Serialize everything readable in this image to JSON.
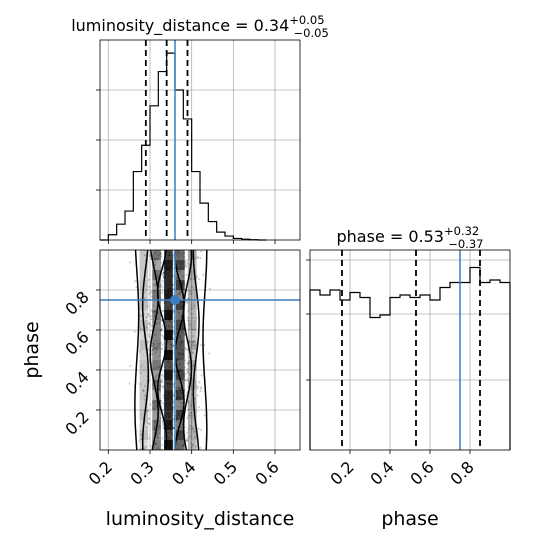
{
  "chart_data": {
    "type": "corner",
    "parameters": [
      "luminosity_distance",
      "phase"
    ],
    "ranges": {
      "luminosity_distance": [
        0.18,
        0.66
      ],
      "phase": [
        0.0,
        1.0
      ]
    },
    "ticks": {
      "luminosity_distance": [
        0.2,
        0.3,
        0.4,
        0.5,
        0.6
      ],
      "phase": [
        0.2,
        0.4,
        0.6,
        0.8
      ]
    },
    "tick_labels": {
      "luminosity_distance": [
        "0.2",
        "0.3",
        "0.4",
        "0.5",
        "0.6"
      ],
      "phase": [
        "0.2",
        "0.4",
        "0.6",
        "0.8"
      ]
    },
    "axis_labels": {
      "x_bottom_left": "luminosity_distance",
      "x_bottom_right": "phase",
      "y_left": "phase"
    },
    "titles": {
      "luminosity_distance": {
        "name": "luminosity_distance",
        "median": "0.34",
        "plus": "+0.05",
        "minus": "−0.05"
      },
      "phase": {
        "name": "phase",
        "median": "0.53",
        "plus": "+0.32",
        "minus": "−0.37"
      }
    },
    "quantiles": {
      "luminosity_distance": [
        0.29,
        0.34,
        0.39
      ],
      "phase": [
        0.16,
        0.53,
        0.85
      ]
    },
    "truths": {
      "luminosity_distance": 0.36,
      "phase": 0.75
    },
    "histograms": {
      "luminosity_distance": {
        "edges": [
          0.18,
          0.2,
          0.22,
          0.24,
          0.26,
          0.28,
          0.3,
          0.32,
          0.34,
          0.36,
          0.38,
          0.4,
          0.42,
          0.44,
          0.46,
          0.48,
          0.5,
          0.52,
          0.54,
          0.56,
          0.58
        ],
        "counts": [
          0,
          2,
          6,
          11,
          26,
          36,
          51,
          64,
          71,
          57,
          46,
          26,
          14,
          7,
          3,
          1.5,
          0.6,
          0.3,
          0.1,
          0
        ]
      },
      "phase": {
        "edges": [
          0.0,
          0.05,
          0.1,
          0.15,
          0.2,
          0.25,
          0.3,
          0.35,
          0.4,
          0.45,
          0.5,
          0.55,
          0.6,
          0.65,
          0.7,
          0.75,
          0.8,
          0.85,
          0.9,
          0.95,
          1.0
        ],
        "counts": [
          64,
          62,
          64,
          60,
          63,
          61,
          53,
          54,
          61,
          62,
          61,
          62,
          60,
          65,
          67,
          67,
          73,
          67,
          68,
          67
        ]
      }
    },
    "density_2d": {
      "x_center": 0.35,
      "x_spread": 0.038,
      "y_range": [
        0.0,
        1.0
      ],
      "contour_levels": [
        0.39,
        0.86,
        1.18,
        2.0
      ]
    },
    "grid": true,
    "colors": {
      "truth": "#3a7ebf",
      "hist": "#000000",
      "quantile": "#000000",
      "grid": "#b0b0b0"
    }
  }
}
